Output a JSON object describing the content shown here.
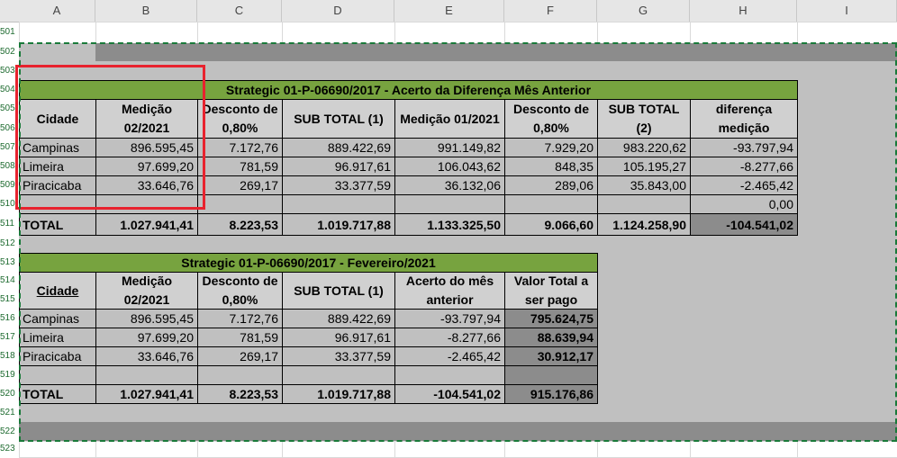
{
  "columns": [
    "A",
    "B",
    "C",
    "D",
    "E",
    "F",
    "G",
    "H",
    "I"
  ],
  "rows": [
    "501",
    "502",
    "503",
    "504",
    "505",
    "506",
    "507",
    "508",
    "509",
    "510",
    "511",
    "512",
    "513",
    "514",
    "515",
    "516",
    "517",
    "518",
    "519",
    "520",
    "521",
    "522",
    "523"
  ],
  "table1": {
    "title": "Strategic 01-P-06690/2017 - Acerto da Diferença Mês Anterior",
    "headers": [
      "Cidade",
      "Medição 02/2021",
      "Desconto de 0,80%",
      "SUB TOTAL (1)",
      "Medição 01/2021",
      "Desconto de 0,80%",
      "SUB TOTAL (2)",
      "diferença medição"
    ],
    "rows": [
      [
        "Campinas",
        "896.595,45",
        "7.172,76",
        "889.422,69",
        "991.149,82",
        "7.929,20",
        "983.220,62",
        "-93.797,94"
      ],
      [
        "Limeira",
        "97.699,20",
        "781,59",
        "96.917,61",
        "106.043,62",
        "848,35",
        "105.195,27",
        "-8.277,66"
      ],
      [
        "Piracicaba",
        "33.646,76",
        "269,17",
        "33.377,59",
        "36.132,06",
        "289,06",
        "35.843,00",
        "-2.465,42"
      ],
      [
        "",
        "",
        "",
        "",
        "",
        "",
        "",
        "0,00"
      ]
    ],
    "total": [
      "TOTAL",
      "1.027.941,41",
      "8.223,53",
      "1.019.717,88",
      "1.133.325,50",
      "9.066,60",
      "1.124.258,90",
      "-104.541,02"
    ]
  },
  "table2": {
    "title": "Strategic 01-P-06690/2017 - Fevereiro/2021",
    "headers": [
      "Cidade",
      "Medição 02/2021",
      "Desconto de 0,80%",
      "SUB TOTAL (1)",
      "Acerto do mês anterior",
      "Valor Total a ser pago"
    ],
    "rows": [
      [
        "Campinas",
        "896.595,45",
        "7.172,76",
        "889.422,69",
        "-93.797,94",
        "795.624,75"
      ],
      [
        "Limeira",
        "97.699,20",
        "781,59",
        "96.917,61",
        "-8.277,66",
        "88.639,94"
      ],
      [
        "Piracicaba",
        "33.646,76",
        "269,17",
        "33.377,59",
        "-2.465,42",
        "30.912,17"
      ],
      [
        "",
        "",
        "",
        "",
        "",
        ""
      ]
    ],
    "total": [
      "TOTAL",
      "1.027.941,41",
      "8.223,53",
      "1.019.717,88",
      "-104.541,02",
      "915.176,86"
    ]
  },
  "colors": {
    "title_green": "#77a33f",
    "grey_fill": "#c0c0c0",
    "dark_fill": "#8c8c8c",
    "highlight_box": "#e8222e",
    "selection_dash": "#1a7a3a"
  }
}
